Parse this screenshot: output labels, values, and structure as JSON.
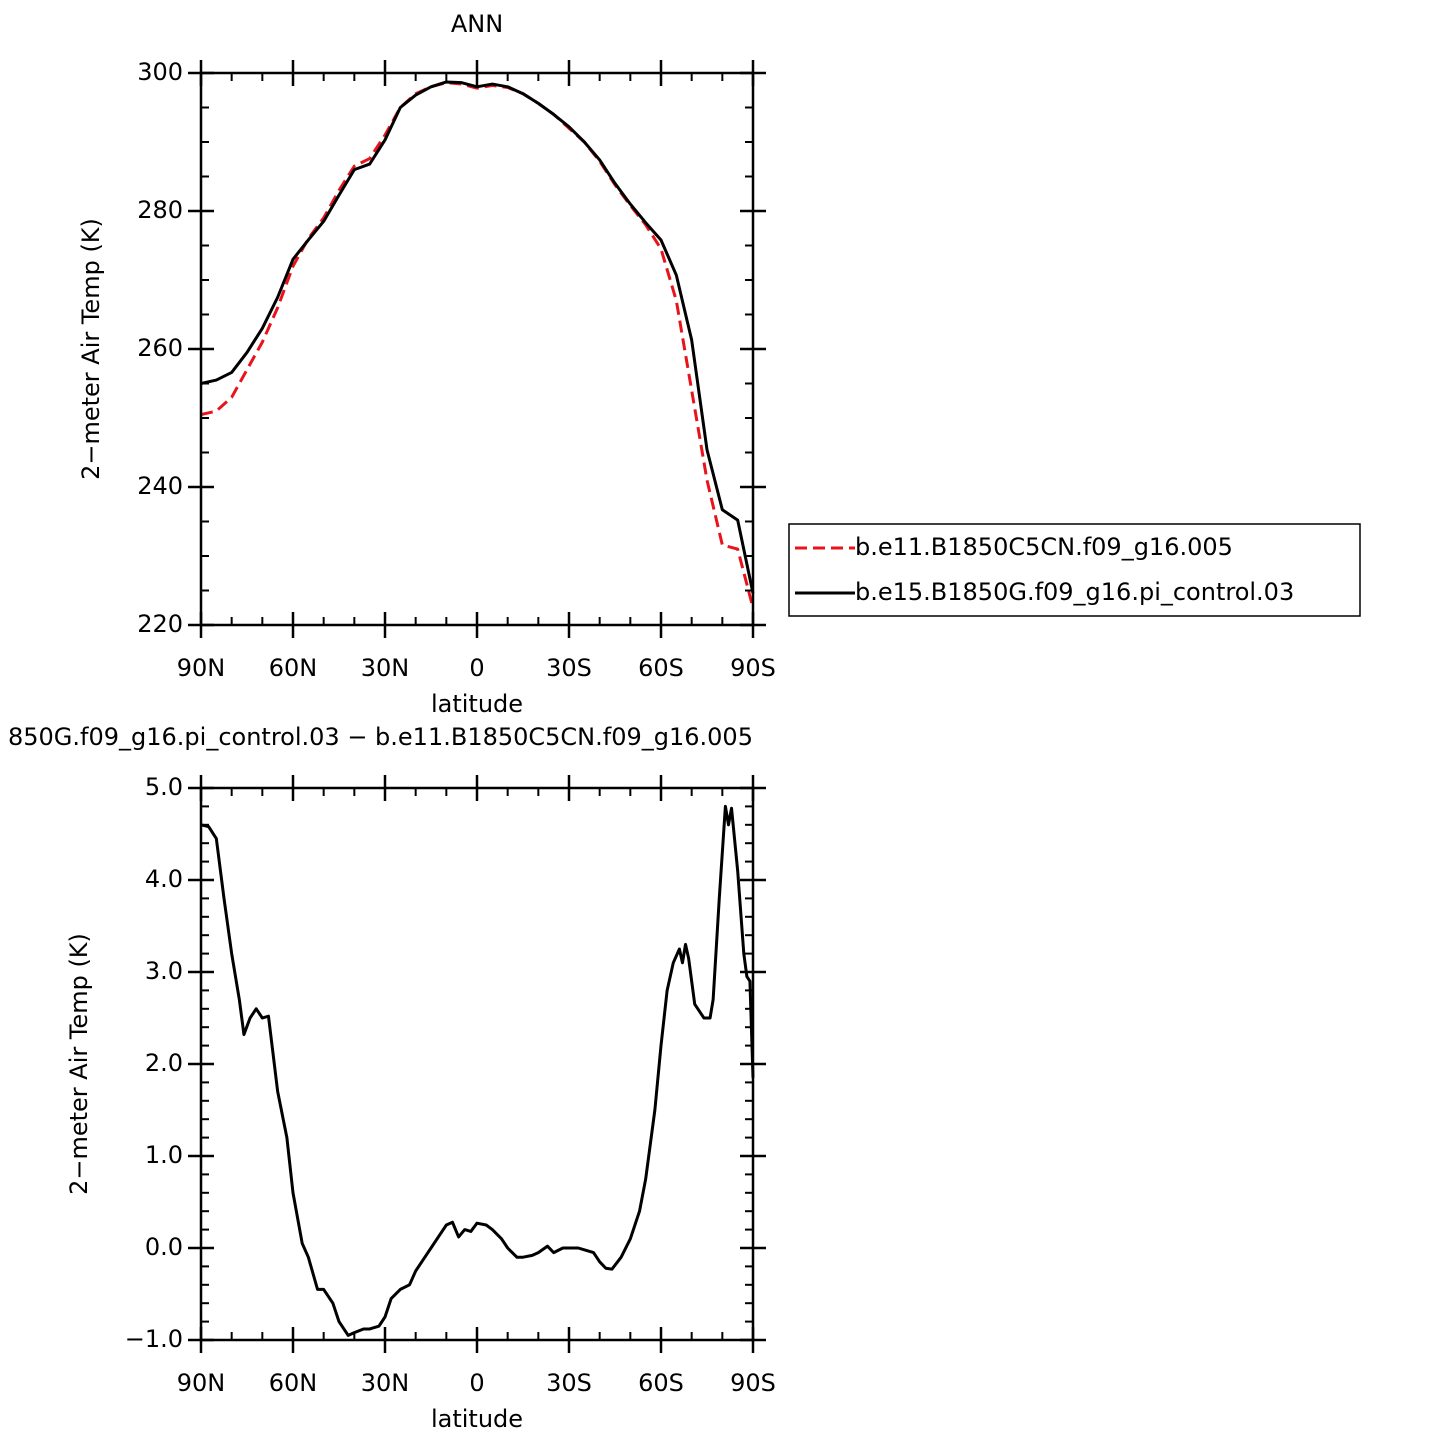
{
  "chart_data": [
    {
      "type": "line",
      "title": "ANN",
      "xlabel": "latitude",
      "ylabel": "2−meter Air Temp (K)",
      "x": [
        90,
        85,
        80,
        75,
        70,
        65,
        60,
        55,
        50,
        45,
        40,
        35,
        30,
        25,
        20,
        15,
        10,
        5,
        0,
        -5,
        -10,
        -15,
        -20,
        -25,
        -30,
        -35,
        -40,
        -45,
        -50,
        -55,
        -60,
        -65,
        -70,
        -75,
        -80,
        -85,
        -90
      ],
      "series": [
        {
          "name": "b.e11.B1850C5CN.f09_g16.005",
          "color": "#e8141c",
          "dash": true,
          "values": [
            250.5,
            251,
            253,
            257,
            261,
            266,
            272,
            276,
            279,
            283,
            286.5,
            287.6,
            291,
            295,
            297,
            298,
            298.6,
            298.4,
            297.8,
            298.2,
            297.9,
            297,
            295.6,
            294,
            292,
            290,
            287.2,
            283.8,
            280.8,
            278,
            274.5,
            267,
            254,
            241,
            231.6,
            231,
            222.5
          ]
        },
        {
          "name": "b.e15.B1850G.f09_g16.pi_control.03",
          "color": "#000000",
          "dash": false,
          "values": [
            255.0,
            255.5,
            256.6,
            259.5,
            263,
            267.5,
            273,
            275.8,
            278.5,
            282.3,
            286,
            286.8,
            290.3,
            295,
            296.8,
            298,
            298.7,
            298.6,
            298,
            298.4,
            298,
            297,
            295.6,
            294,
            292.2,
            290,
            287.4,
            284,
            281,
            278.3,
            275.8,
            270.7,
            261.3,
            245.4,
            236.7,
            235.2,
            224.6
          ]
        }
      ],
      "xlim": [
        90,
        -90
      ],
      "xticks": [
        {
          "value": 90,
          "label": "90N"
        },
        {
          "value": 60,
          "label": "60N"
        },
        {
          "value": 30,
          "label": "30N"
        },
        0,
        {
          "value": -30,
          "label": "30S"
        },
        {
          "value": -60,
          "label": "60S"
        },
        {
          "value": -90,
          "label": "90S"
        }
      ],
      "xminorticks": [
        80,
        70,
        50,
        40,
        20,
        10,
        -10,
        -20,
        -40,
        -50,
        -70,
        -80
      ],
      "ylim": [
        220,
        300
      ],
      "yticks": [
        220,
        240,
        260,
        280,
        300
      ],
      "yminorticks": [
        225,
        230,
        235,
        245,
        250,
        255,
        265,
        270,
        275,
        285,
        290,
        295
      ],
      "legend": "right"
    },
    {
      "type": "line",
      "title": "850G.f09_g16.pi_control.03 − b.e11.B1850C5CN.f09_g16.005",
      "xlabel": "latitude",
      "ylabel": "2−meter Air Temp (K)",
      "x": [
        90,
        87.5,
        85,
        82.5,
        80,
        77.5,
        76,
        74,
        72,
        70,
        68,
        65,
        62,
        60,
        57,
        55,
        52,
        50,
        47,
        45,
        42,
        40,
        37,
        35,
        32,
        30,
        28,
        25,
        22,
        20,
        17,
        15,
        12,
        10,
        8,
        6,
        4,
        2,
        0,
        -3,
        -5,
        -8,
        -10,
        -13,
        -15,
        -18,
        -20,
        -23,
        -25,
        -28,
        -30,
        -33,
        -35,
        -38,
        -40,
        -42,
        -44,
        -47,
        -50,
        -53,
        -55,
        -58,
        -60,
        -62,
        -64,
        -66,
        -67,
        -68,
        -69,
        -71,
        -73,
        -74,
        -76,
        -77,
        -79,
        -81,
        -82,
        -83,
        -85,
        -87,
        -88,
        -89,
        -90
      ],
      "series": [
        {
          "color": "#000000",
          "dash": false,
          "values": [
            4.6,
            4.58,
            4.45,
            3.8,
            3.2,
            2.7,
            2.32,
            2.5,
            2.6,
            2.5,
            2.52,
            1.7,
            1.2,
            0.6,
            0.05,
            -0.1,
            -0.45,
            -0.45,
            -0.6,
            -0.8,
            -0.95,
            -0.92,
            -0.88,
            -0.88,
            -0.85,
            -0.75,
            -0.55,
            -0.45,
            -0.4,
            -0.25,
            -0.1,
            0.0,
            0.15,
            0.25,
            0.28,
            0.12,
            0.2,
            0.18,
            0.27,
            0.25,
            0.2,
            0.1,
            0.0,
            -0.1,
            -0.1,
            -0.08,
            -0.05,
            0.02,
            -0.05,
            0.0,
            0.0,
            0.0,
            -0.02,
            -0.05,
            -0.15,
            -0.22,
            -0.23,
            -0.1,
            0.1,
            0.4,
            0.75,
            1.5,
            2.2,
            2.8,
            3.1,
            3.25,
            3.1,
            3.3,
            3.15,
            2.65,
            2.55,
            2.5,
            2.5,
            2.7,
            3.8,
            4.8,
            4.6,
            4.78,
            4.1,
            3.2,
            2.95,
            2.9,
            1.85
          ]
        }
      ],
      "xlim": [
        90,
        -90
      ],
      "xticks": [
        {
          "value": 90,
          "label": "90N"
        },
        {
          "value": 60,
          "label": "60N"
        },
        {
          "value": 30,
          "label": "30N"
        },
        0,
        {
          "value": -30,
          "label": "30S"
        },
        {
          "value": -60,
          "label": "60S"
        },
        {
          "value": -90,
          "label": "90S"
        }
      ],
      "xminorticks": [
        80,
        70,
        50,
        40,
        20,
        10,
        -10,
        -20,
        -40,
        -50,
        -70,
        -80
      ],
      "ylim": [
        -1,
        5
      ],
      "yticks": [
        {
          "value": -1,
          "label": "−1.0"
        },
        {
          "value": 0,
          "label": "0.0"
        },
        {
          "value": 1,
          "label": "1.0"
        },
        {
          "value": 2,
          "label": "2.0"
        },
        {
          "value": 3,
          "label": "3.0"
        },
        {
          "value": 4,
          "label": "4.0"
        },
        {
          "value": 5,
          "label": "5.0"
        }
      ],
      "yminorticks": [
        -0.8,
        -0.6,
        -0.4,
        -0.2,
        0.2,
        0.4,
        0.6,
        0.8,
        1.2,
        1.4,
        1.6,
        1.8,
        2.2,
        2.4,
        2.6,
        2.8,
        3.2,
        3.4,
        3.6,
        3.8,
        4.2,
        4.4,
        4.6,
        4.8
      ]
    }
  ]
}
